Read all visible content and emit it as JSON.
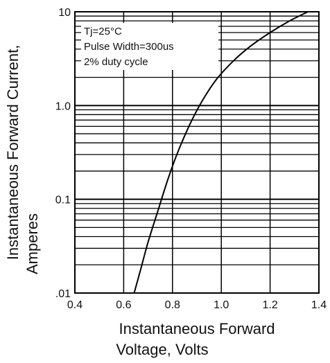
{
  "chart_data": {
    "type": "line",
    "title": "",
    "xlabel_lines": [
      "Instantaneous Forward",
      "Voltage, Volts"
    ],
    "ylabel_lines": [
      "Instantaneous Forward Current,",
      "Amperes"
    ],
    "x_scale": "linear",
    "y_scale": "log",
    "xlim": [
      0.4,
      1.4
    ],
    "ylim": [
      0.01,
      10
    ],
    "x_ticks": [
      0.4,
      0.6,
      0.8,
      1.0,
      1.2,
      1.4
    ],
    "x_tick_labels": [
      "0.4",
      "0.6",
      "0.8",
      "1.0",
      "1.2",
      "1.4"
    ],
    "y_ticks": [
      0.01,
      0.1,
      1,
      10
    ],
    "y_tick_labels": [
      ".01",
      "0.1",
      "1.0",
      "10"
    ],
    "grid": true,
    "annotation": {
      "lines": [
        "Tj=25°C",
        "Pulse Width=300us",
        "2% duty cycle"
      ],
      "placement": "top-left"
    },
    "series": [
      {
        "x": [
          0.643,
          0.67,
          0.7,
          0.74,
          0.78,
          0.82,
          0.87,
          0.92,
          0.98,
          1.05,
          1.12,
          1.2,
          1.28,
          1.355
        ],
        "y": [
          0.01,
          0.018,
          0.035,
          0.075,
          0.16,
          0.31,
          0.62,
          1.1,
          1.9,
          3.0,
          4.3,
          6.0,
          8.0,
          10
        ]
      }
    ]
  }
}
